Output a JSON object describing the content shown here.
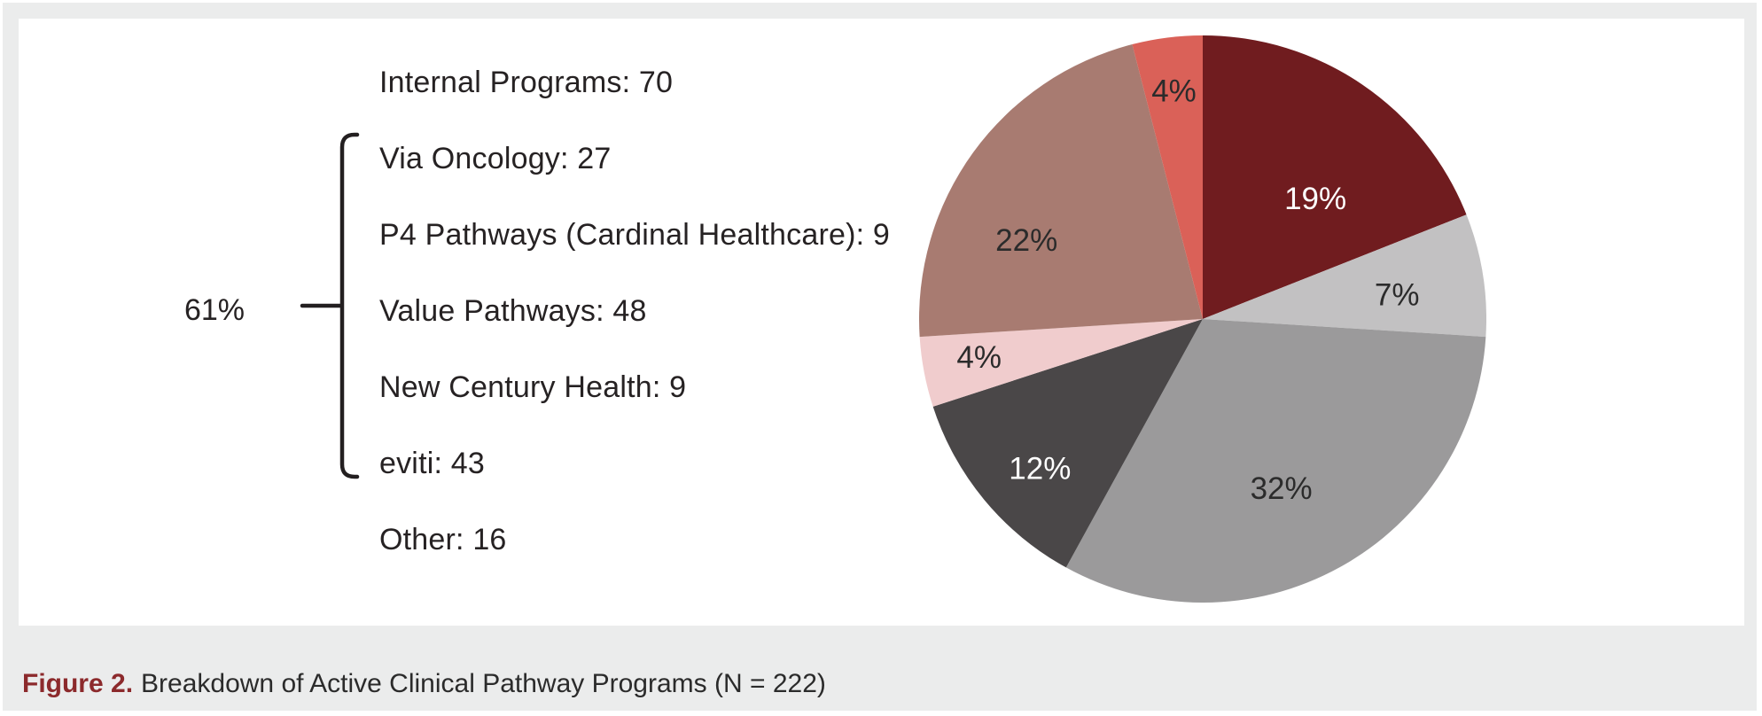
{
  "colors": {
    "mat_background": "#EBECEC",
    "panel_background": "#FFFFFF",
    "text": "#262223",
    "bracket": "#231F20",
    "caption_prefix": "#8C2A2C",
    "caption_text": "#2B2B2B"
  },
  "legend": {
    "items": [
      {
        "label": "Internal Programs: 70"
      },
      {
        "label": "Via Oncology: 27"
      },
      {
        "label": "P4 Pathways (Cardinal Healthcare): 9"
      },
      {
        "label": "Value Pathways: 48"
      },
      {
        "label": "New Century Health: 9"
      },
      {
        "label": "eviti: 43"
      },
      {
        "label": "Other: 16"
      }
    ],
    "group_label": "61%"
  },
  "caption": {
    "prefix": "Figure 2.",
    "text": "Breakdown of Active Clinical Pathway Programs (N = 222)"
  },
  "chart_data": {
    "type": "pie",
    "title": "Breakdown of Active Clinical Pathway Programs",
    "total": 222,
    "start_angle_deg": 0,
    "direction": "clockwise",
    "legend_position": "left",
    "slices": [
      {
        "name": "eviti",
        "count": 43,
        "pct": 19,
        "label": "19%",
        "color": "#701C1F",
        "label_color": "#FFFFFF"
      },
      {
        "name": "Other",
        "count": 16,
        "pct": 7,
        "label": "7%",
        "color": "#C2C1C2",
        "label_color": "#2B2B2B"
      },
      {
        "name": "Internal Programs",
        "count": 70,
        "pct": 32,
        "label": "32%",
        "color": "#9B9A9B",
        "label_color": "#2B2B2B"
      },
      {
        "name": "Via Oncology",
        "count": 27,
        "pct": 12,
        "label": "12%",
        "color": "#4A4748",
        "label_color": "#FFFFFF"
      },
      {
        "name": "P4 Pathways (Cardinal Healthcare)",
        "count": 9,
        "pct": 4,
        "label": "4%",
        "color": "#F0CCCD",
        "label_color": "#2B2B2B"
      },
      {
        "name": "Value Pathways",
        "count": 48,
        "pct": 22,
        "label": "22%",
        "color": "#A87B71",
        "label_color": "#2B2B2B"
      },
      {
        "name": "New Century Health",
        "count": 9,
        "pct": 4,
        "label": "4%",
        "color": "#DA6158",
        "label_color": "#2B2B2B"
      }
    ],
    "grouped_share_label": "61%",
    "grouped_slice_names": [
      "Via Oncology",
      "P4 Pathways (Cardinal Healthcare)",
      "Value Pathways",
      "New Century Health",
      "eviti"
    ]
  }
}
